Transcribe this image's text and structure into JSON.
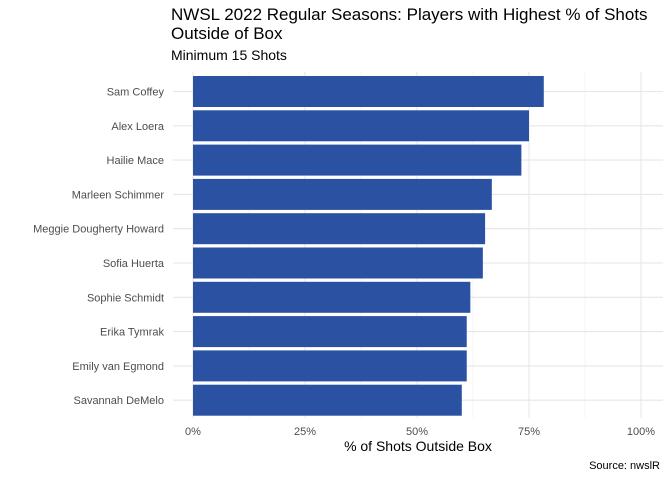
{
  "chart_data": {
    "type": "bar",
    "orientation": "horizontal",
    "title": "NWSL 2022 Regular Seasons: Players with Highest % of Shots Outside of Box",
    "subtitle": "Minimum 15 Shots",
    "xlabel": "% of Shots Outside Box",
    "ylabel": "",
    "caption": "Source: nwslR",
    "xlim": [
      0,
      1
    ],
    "x_ticks": [
      {
        "value": 0,
        "label": "0%"
      },
      {
        "value": 0.25,
        "label": "25%"
      },
      {
        "value": 0.5,
        "label": "50%"
      },
      {
        "value": 0.75,
        "label": "75%"
      },
      {
        "value": 1,
        "label": "100%"
      }
    ],
    "categories": [
      "Sam Coffey",
      "Alex Loera",
      "Hailie Mace",
      "Marleen Schimmer",
      "Meggie Dougherty Howard",
      "Sofia Huerta",
      "Sophie Schmidt",
      "Erika Tymrak",
      "Emily van Egmond",
      "Savannah DeMelo"
    ],
    "values": [
      0.783,
      0.75,
      0.733,
      0.667,
      0.652,
      0.647,
      0.619,
      0.611,
      0.611,
      0.6
    ],
    "bar_color": "#2b51a3",
    "grid": true,
    "legend": "none"
  }
}
